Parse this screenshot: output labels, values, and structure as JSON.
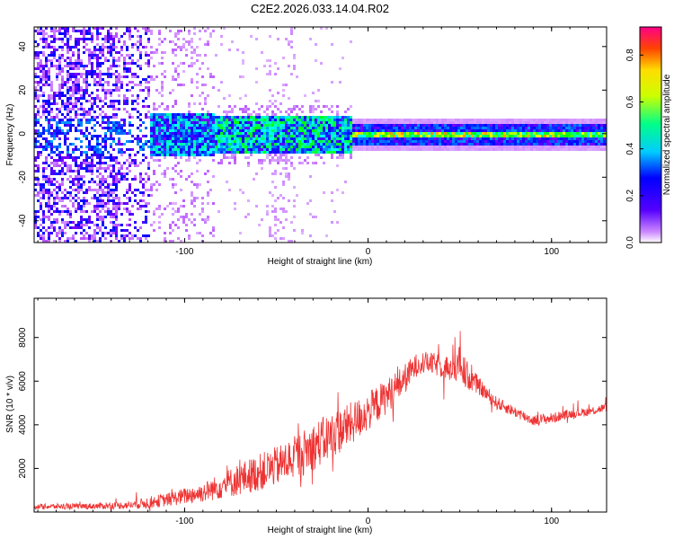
{
  "title": "C2E2.2026.033.14.04.R02",
  "chart_data": [
    {
      "type": "heatmap",
      "xlabel": "Height of straight line (km)",
      "ylabel": "Frequency (Hz)",
      "xlim": [
        -182,
        130
      ],
      "ylim": [
        -50,
        49
      ],
      "xticks": [
        -100,
        0,
        100
      ],
      "yticks": [
        -40,
        -20,
        0,
        20,
        40
      ],
      "colorbar": {
        "label": "Normalized spectral amplitude",
        "range": [
          0,
          0.92
        ],
        "ticks": [
          0.0,
          0.2,
          0.4,
          0.6,
          0.8
        ]
      }
    },
    {
      "type": "line",
      "color": "#ee3333",
      "xlabel": "Height of straight line (km)",
      "ylabel": "SNR (10 * v/v)",
      "xlim": [
        -182,
        130
      ],
      "ylim": [
        0,
        9800
      ],
      "xticks": [
        -100,
        0,
        100
      ],
      "yticks": [
        2000,
        4000,
        6000,
        8000
      ],
      "envelope": {
        "x": [
          -182,
          -150,
          -130,
          -120,
          -110,
          -100,
          -90,
          -80,
          -70,
          -60,
          -50,
          -40,
          -30,
          -20,
          -10,
          0,
          10,
          20,
          28,
          35,
          45,
          50,
          55,
          60,
          70,
          80,
          90,
          100,
          110,
          120,
          130
        ],
        "y": [
          250,
          270,
          320,
          430,
          560,
          730,
          900,
          1200,
          1500,
          1800,
          2100,
          2500,
          3000,
          3500,
          4000,
          4600,
          5300,
          6100,
          6900,
          6800,
          6600,
          6700,
          6200,
          5800,
          5000,
          4600,
          4200,
          4300,
          4500,
          4600,
          4800
        ],
        "amp": [
          120,
          140,
          170,
          280,
          300,
          380,
          450,
          600,
          750,
          850,
          900,
          1000,
          1100,
          1100,
          1000,
          900,
          800,
          700,
          500,
          500,
          600,
          900,
          600,
          400,
          300,
          250,
          250,
          250,
          200,
          200,
          200
        ]
      }
    }
  ]
}
